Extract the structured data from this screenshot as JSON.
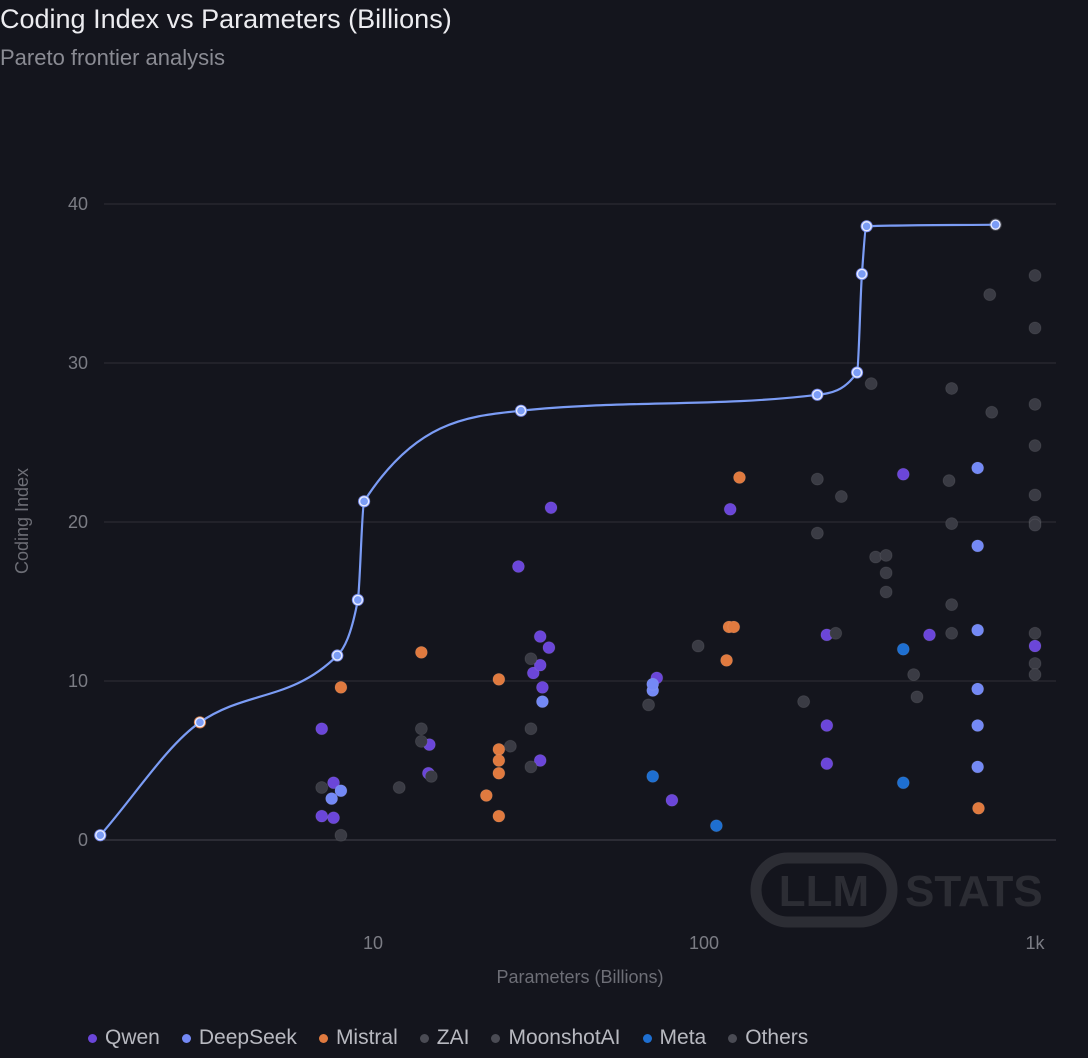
{
  "chart_data": {
    "type": "scatter",
    "title": "Coding Index vs Parameters (Billions)",
    "subtitle": "Pareto frontier analysis",
    "xlabel": "Parameters (Billions)",
    "ylabel": "Coding Index",
    "x_scale": "log",
    "xlim": [
      1.5,
      1000
    ],
    "ylim": [
      -1.5,
      46
    ],
    "x_ticks": [
      {
        "value": 10,
        "label": "10"
      },
      {
        "value": 100,
        "label": "100"
      },
      {
        "value": 1000,
        "label": "1k"
      }
    ],
    "y_ticks": [
      {
        "value": 0,
        "label": "0"
      },
      {
        "value": 10,
        "label": "10"
      },
      {
        "value": 20,
        "label": "20"
      },
      {
        "value": 30,
        "label": "30"
      },
      {
        "value": 40,
        "label": "40"
      }
    ],
    "grid": true,
    "legend_position": "bottom",
    "watermark": "LLM STATS",
    "series": [
      {
        "name": "Qwen",
        "color": "#6b46d9",
        "points": [
          [
            7,
            7
          ],
          [
            7,
            1.5
          ],
          [
            7.6,
            1.4
          ],
          [
            7.6,
            3.6
          ],
          [
            14.7,
            4.2
          ],
          [
            14.8,
            6
          ],
          [
            27.5,
            17.2
          ],
          [
            30.5,
            10.5
          ],
          [
            32,
            12.8
          ],
          [
            32,
            11
          ],
          [
            32.5,
            9.6
          ],
          [
            34,
            12.1
          ],
          [
            34.5,
            20.9
          ],
          [
            32,
            5
          ],
          [
            72,
            10.2
          ],
          [
            80,
            2.5
          ],
          [
            120,
            20.8
          ],
          [
            235,
            12.9
          ],
          [
            235,
            7.2
          ],
          [
            235,
            4.8
          ],
          [
            400,
            23
          ],
          [
            480,
            12.9
          ],
          [
            1000,
            12.2
          ]
        ]
      },
      {
        "name": "DeepSeek",
        "color": "#7489f5",
        "points": [
          [
            1.5,
            0.3
          ],
          [
            7.5,
            2.6
          ],
          [
            8,
            3.1
          ],
          [
            7.8,
            11.6
          ],
          [
            9,
            15.1
          ],
          [
            9.4,
            21.3
          ],
          [
            28,
            27
          ],
          [
            32.5,
            8.7
          ],
          [
            70,
            9.4
          ],
          [
            70,
            9.8
          ],
          [
            220,
            28
          ],
          [
            290,
            29.4
          ],
          [
            300,
            35.6
          ],
          [
            310,
            38.6
          ],
          [
            671,
            23.4
          ],
          [
            671,
            18.5
          ],
          [
            671,
            13.2
          ],
          [
            671,
            9.5
          ],
          [
            671,
            7.2
          ],
          [
            671,
            4.6
          ]
        ]
      },
      {
        "name": "Mistral",
        "color": "#e07a3f",
        "points": [
          [
            3,
            7.4
          ],
          [
            8,
            9.6
          ],
          [
            14,
            11.8
          ],
          [
            22,
            2.8
          ],
          [
            24,
            10.1
          ],
          [
            24,
            5.7
          ],
          [
            24,
            5.0
          ],
          [
            24,
            4.2
          ],
          [
            24,
            1.5
          ],
          [
            117,
            11.3
          ],
          [
            119,
            13.4
          ],
          [
            123,
            13.4
          ],
          [
            128,
            22.8
          ],
          [
            675,
            2.0
          ]
        ]
      },
      {
        "name": "ZAI",
        "color": "#3a3b44",
        "points": [
          [
            7,
            3.3
          ],
          [
            8,
            0.3
          ],
          [
            12,
            3.3
          ],
          [
            14,
            7
          ],
          [
            14,
            6.2
          ],
          [
            15,
            4
          ],
          [
            26,
            5.9
          ],
          [
            30,
            7
          ],
          [
            30,
            11.4
          ],
          [
            30,
            4.6
          ],
          [
            68,
            8.5
          ],
          [
            96,
            12.2
          ],
          [
            200,
            8.7
          ],
          [
            220,
            22.7
          ],
          [
            220,
            19.3
          ],
          [
            250,
            13
          ],
          [
            260,
            21.6
          ],
          [
            320,
            28.7
          ],
          [
            330,
            17.8
          ],
          [
            355,
            17.9
          ],
          [
            355,
            15.6
          ],
          [
            355,
            16.8
          ],
          [
            430,
            10.4
          ],
          [
            440,
            9
          ],
          [
            550,
            22.6
          ],
          [
            560,
            19.9
          ],
          [
            560,
            13
          ],
          [
            560,
            14.8
          ],
          [
            560,
            28.4
          ],
          [
            730,
            34.3
          ],
          [
            740,
            26.9
          ],
          [
            1000,
            32.2
          ],
          [
            1000,
            35.5
          ],
          [
            1000,
            27.4
          ],
          [
            1000,
            24.8
          ],
          [
            1000,
            21.7
          ],
          [
            1000,
            20
          ],
          [
            1000,
            19.8
          ],
          [
            1000,
            13
          ],
          [
            1000,
            11.1
          ],
          [
            1000,
            10.4
          ]
        ]
      },
      {
        "name": "MoonshotAI",
        "color": "#3d3e47",
        "points": [
          [
            760,
            38.7
          ]
        ]
      },
      {
        "name": "Meta",
        "color": "#1e6fd1",
        "points": [
          [
            70,
            4
          ],
          [
            109,
            0.9
          ],
          [
            400,
            12
          ],
          [
            400,
            3.6
          ]
        ]
      },
      {
        "name": "Others",
        "color": "#46474f",
        "points": []
      }
    ],
    "pareto_frontier": {
      "color": "#7b9cf5",
      "points": [
        [
          1.5,
          0.3
        ],
        [
          3,
          7.4
        ],
        [
          7.8,
          11.6
        ],
        [
          9,
          15.1
        ],
        [
          9.4,
          21.3
        ],
        [
          28,
          27
        ],
        [
          220,
          28
        ],
        [
          290,
          29.4
        ],
        [
          300,
          35.6
        ],
        [
          310,
          38.6
        ],
        [
          760,
          38.7
        ]
      ]
    }
  }
}
